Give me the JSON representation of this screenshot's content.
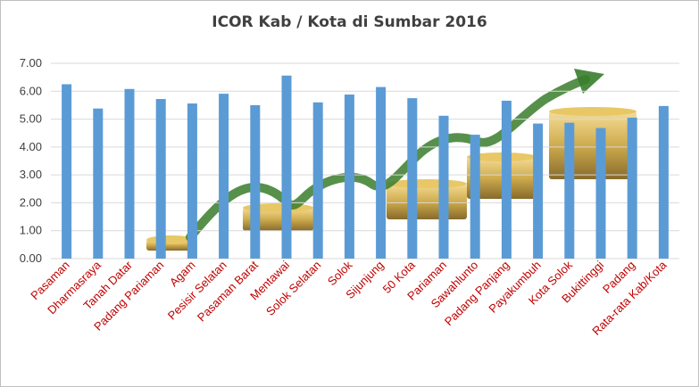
{
  "chart_data": {
    "type": "bar",
    "title": "ICOR  Kab / Kota di Sumbar 2016",
    "xlabel": "",
    "ylabel": "",
    "ylim": [
      0,
      7
    ],
    "yticks": [
      "0.00",
      "1.00",
      "2.00",
      "3.00",
      "4.00",
      "5.00",
      "6.00",
      "7.00"
    ],
    "grid": true,
    "legend": "none",
    "categories": [
      "Pasaman",
      "Dharmasraya",
      "Tanah Datar",
      "Padang Pariaman",
      "Agam",
      "Pesisir Selatan",
      "Pasaman Barat",
      "Mentawai",
      "Solok Selatan",
      "Solok",
      "Sijunjung",
      "50 Kota",
      "Pariaman",
      "Sawahlunto",
      "Padang Panjang",
      "Payakumbuh",
      "Kota Solok",
      "Bukittinggi",
      "Padang",
      "Rata-rata Kab/Kota"
    ],
    "values": [
      6.25,
      5.38,
      6.08,
      5.72,
      5.56,
      5.91,
      5.5,
      6.56,
      5.6,
      5.88,
      6.15,
      5.75,
      5.12,
      4.44,
      5.66,
      4.84,
      4.87,
      4.68,
      5.05,
      5.47
    ],
    "colors": {
      "bar": "#5b9bd5",
      "grid": "#d9d9d9",
      "category_label": "#c00000",
      "value_label": "#404040",
      "arrow": "#3a7d2c",
      "coins": "#c9a23a"
    }
  }
}
